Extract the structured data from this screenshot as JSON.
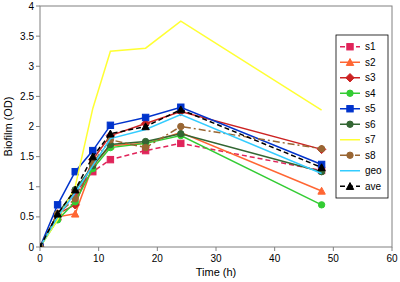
{
  "chart_data": {
    "type": "line",
    "x_label": "Time (h)",
    "y_label": "Biofilm (OD)",
    "x": [
      0,
      3,
      6,
      9,
      12,
      18,
      24,
      48
    ],
    "xlim": [
      0,
      60
    ],
    "xticks": [
      0,
      10,
      20,
      30,
      40,
      50,
      60
    ],
    "ylim": [
      0,
      4
    ],
    "yticks": [
      0,
      0.5,
      1,
      1.5,
      2,
      2.5,
      3,
      3.5,
      4
    ],
    "grid": false,
    "legend": "right",
    "series": [
      {
        "name": "s1",
        "color": "#e0245a",
        "marker": "square",
        "line_style": "dashed",
        "values": [
          0,
          0.5,
          0.9,
          1.25,
          1.45,
          1.6,
          1.72,
          1.27
        ]
      },
      {
        "name": "s2",
        "color": "#ff6633",
        "marker": "triangle",
        "line_style": "solid",
        "values": [
          0,
          0.5,
          0.55,
          1.35,
          1.68,
          1.72,
          1.9,
          0.93
        ]
      },
      {
        "name": "s3",
        "color": "#cc2222",
        "marker": "diamond",
        "line_style": "solid",
        "values": [
          0,
          0.55,
          0.7,
          1.45,
          1.85,
          2.05,
          2.25,
          1.62
        ]
      },
      {
        "name": "s4",
        "color": "#33cc33",
        "marker": "circle",
        "line_style": "solid",
        "values": [
          0,
          0.45,
          0.75,
          1.3,
          1.65,
          1.72,
          1.85,
          0.7
        ]
      },
      {
        "name": "s5",
        "color": "#0033cc",
        "marker": "square",
        "line_style": "solid",
        "values": [
          0,
          0.7,
          1.25,
          1.6,
          2.02,
          2.15,
          2.32,
          1.37
        ]
      },
      {
        "name": "s6",
        "color": "#336633",
        "marker": "circle",
        "line_style": "solid",
        "values": [
          0,
          0.55,
          0.95,
          1.35,
          1.7,
          1.75,
          1.88,
          1.25
        ]
      },
      {
        "name": "s7",
        "color": "#ffff33",
        "marker": "none",
        "line_style": "solid",
        "values": [
          0,
          0.45,
          1.0,
          2.3,
          3.25,
          3.3,
          3.75,
          2.27
        ]
      },
      {
        "name": "s8",
        "color": "#996633",
        "marker": "circle",
        "line_style": "dashdot",
        "values": [
          0,
          0.55,
          0.8,
          1.4,
          1.78,
          1.65,
          2.0,
          1.63
        ]
      },
      {
        "name": "geo",
        "color": "#33ccff",
        "marker": "none",
        "line_style": "solid",
        "values": [
          0,
          0.5,
          0.9,
          1.35,
          1.8,
          1.95,
          2.2,
          1.22
        ]
      },
      {
        "name": "ave",
        "color": "#000000",
        "marker": "triangle",
        "line_style": "dashed",
        "values": [
          0,
          0.55,
          0.95,
          1.5,
          1.88,
          2.0,
          2.28,
          1.32
        ]
      }
    ]
  }
}
